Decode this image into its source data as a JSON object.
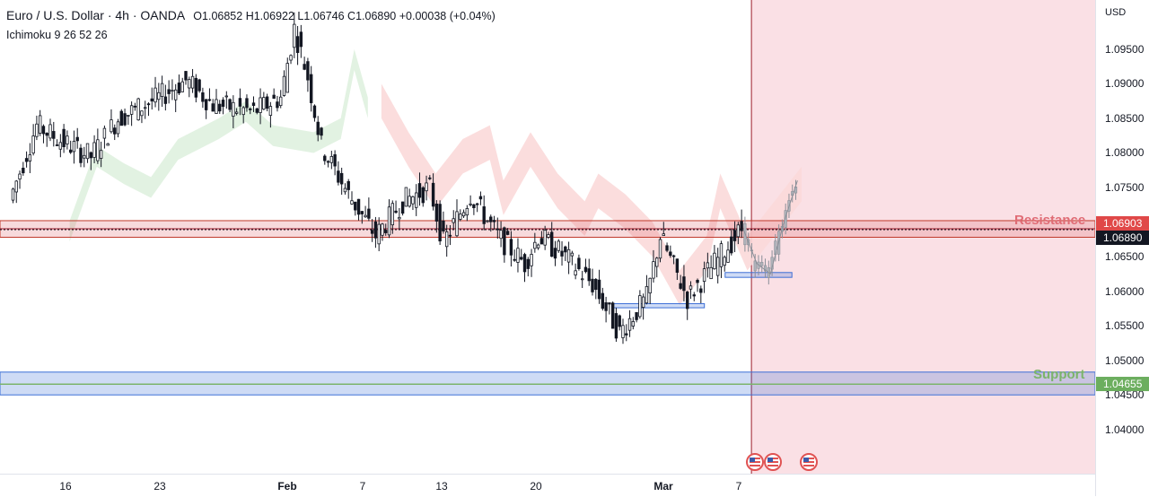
{
  "header": {
    "symbol_line": "Euro / U.S. Dollar · 4h · OANDA",
    "o_label": "O",
    "o_value": "1.06852",
    "h_label": "H",
    "h_value": "1.06922",
    "l_label": "L",
    "l_value": "1.06746",
    "c_label": "C",
    "c_value": "1.06890",
    "change": "+0.00038 (+0.04%)",
    "indicator": "Ichimoku 9 26 52 26"
  },
  "axis": {
    "currency": "USD",
    "price_ticks": [
      "1.09500",
      "1.09000",
      "1.08500",
      "1.08000",
      "1.07500",
      "1.07000",
      "1.06500",
      "1.06000",
      "1.05500",
      "1.05000",
      "1.04500",
      "1.04000"
    ],
    "resistance_tag": "1.06903",
    "last_price_tag": "1.06890",
    "support_tag": "1.04655",
    "time_ticks": [
      {
        "label": "16",
        "bold": false
      },
      {
        "label": "23",
        "bold": false
      },
      {
        "label": "Feb",
        "bold": true
      },
      {
        "label": "7",
        "bold": false
      },
      {
        "label": "13",
        "bold": false
      },
      {
        "label": "20",
        "bold": false
      },
      {
        "label": "Mar",
        "bold": true
      },
      {
        "label": "7",
        "bold": false
      }
    ]
  },
  "annotations": {
    "resistance_label": "Resistance",
    "support_label": "Support"
  },
  "colors": {
    "up": "#131722",
    "down": "#131722",
    "resistance": "#e06c75",
    "support": "#7cb46b",
    "zone_blue": "#3c6fd6",
    "future_zone": "#f6c6cf",
    "cloud_green": "#dff1df",
    "cloud_red": "#fbd9d9"
  },
  "chart_data": {
    "type": "candlestick",
    "title": "Euro / U.S. Dollar · 4h · OANDA",
    "ylim": [
      1.0375,
      1.099
    ],
    "resistance_level": 1.06903,
    "support_level": 1.04655,
    "last_close": 1.0689,
    "price_path": [
      {
        "date": "Jan 12",
        "price": 1.0732
      },
      {
        "date": "Jan 14",
        "price": 1.084
      },
      {
        "date": "Jan 16",
        "price": 1.0815
      },
      {
        "date": "Jan 18",
        "price": 1.0795
      },
      {
        "date": "Jan 20",
        "price": 1.085
      },
      {
        "date": "Jan 23",
        "price": 1.088
      },
      {
        "date": "Jan 25",
        "price": 1.0905
      },
      {
        "date": "Jan 27",
        "price": 1.087
      },
      {
        "date": "Jan 30",
        "price": 1.086
      },
      {
        "date": "Feb 1",
        "price": 1.088
      },
      {
        "date": "Feb 2",
        "price": 1.098
      },
      {
        "date": "Feb 3",
        "price": 1.091
      },
      {
        "date": "Feb 4",
        "price": 1.081
      },
      {
        "date": "Feb 6",
        "price": 1.074
      },
      {
        "date": "Feb 8",
        "price": 1.068
      },
      {
        "date": "Feb 10",
        "price": 1.073
      },
      {
        "date": "Feb 12",
        "price": 1.075
      },
      {
        "date": "Feb 13",
        "price": 1.067
      },
      {
        "date": "Feb 15",
        "price": 1.074
      },
      {
        "date": "Feb 17",
        "price": 1.068
      },
      {
        "date": "Feb 19",
        "price": 1.064
      },
      {
        "date": "Feb 20",
        "price": 1.068
      },
      {
        "date": "Feb 22",
        "price": 1.065
      },
      {
        "date": "Feb 24",
        "price": 1.061
      },
      {
        "date": "Feb 26",
        "price": 1.054
      },
      {
        "date": "Feb 28",
        "price": 1.059
      },
      {
        "date": "Mar 1",
        "price": 1.068
      },
      {
        "date": "Mar 3",
        "price": 1.059
      },
      {
        "date": "Mar 5",
        "price": 1.064
      },
      {
        "date": "Mar 7",
        "price": 1.069
      }
    ],
    "projection_path": [
      {
        "date": "Mar 7",
        "price": 1.069
      },
      {
        "date": "Mar 8",
        "price": 1.064
      },
      {
        "date": "Mar 9",
        "price": 1.0625
      },
      {
        "date": "Mar 10",
        "price": 1.07
      },
      {
        "date": "Mar 11",
        "price": 1.076
      }
    ],
    "zones": [
      {
        "name": "Resistance",
        "from": 1.0678,
        "to": 1.0702
      },
      {
        "name": "Support",
        "from": 1.045,
        "to": 1.0483
      },
      {
        "name": "",
        "from": 1.0576,
        "to": 1.0582
      },
      {
        "name": "",
        "from": 1.062,
        "to": 1.0627
      }
    ]
  }
}
